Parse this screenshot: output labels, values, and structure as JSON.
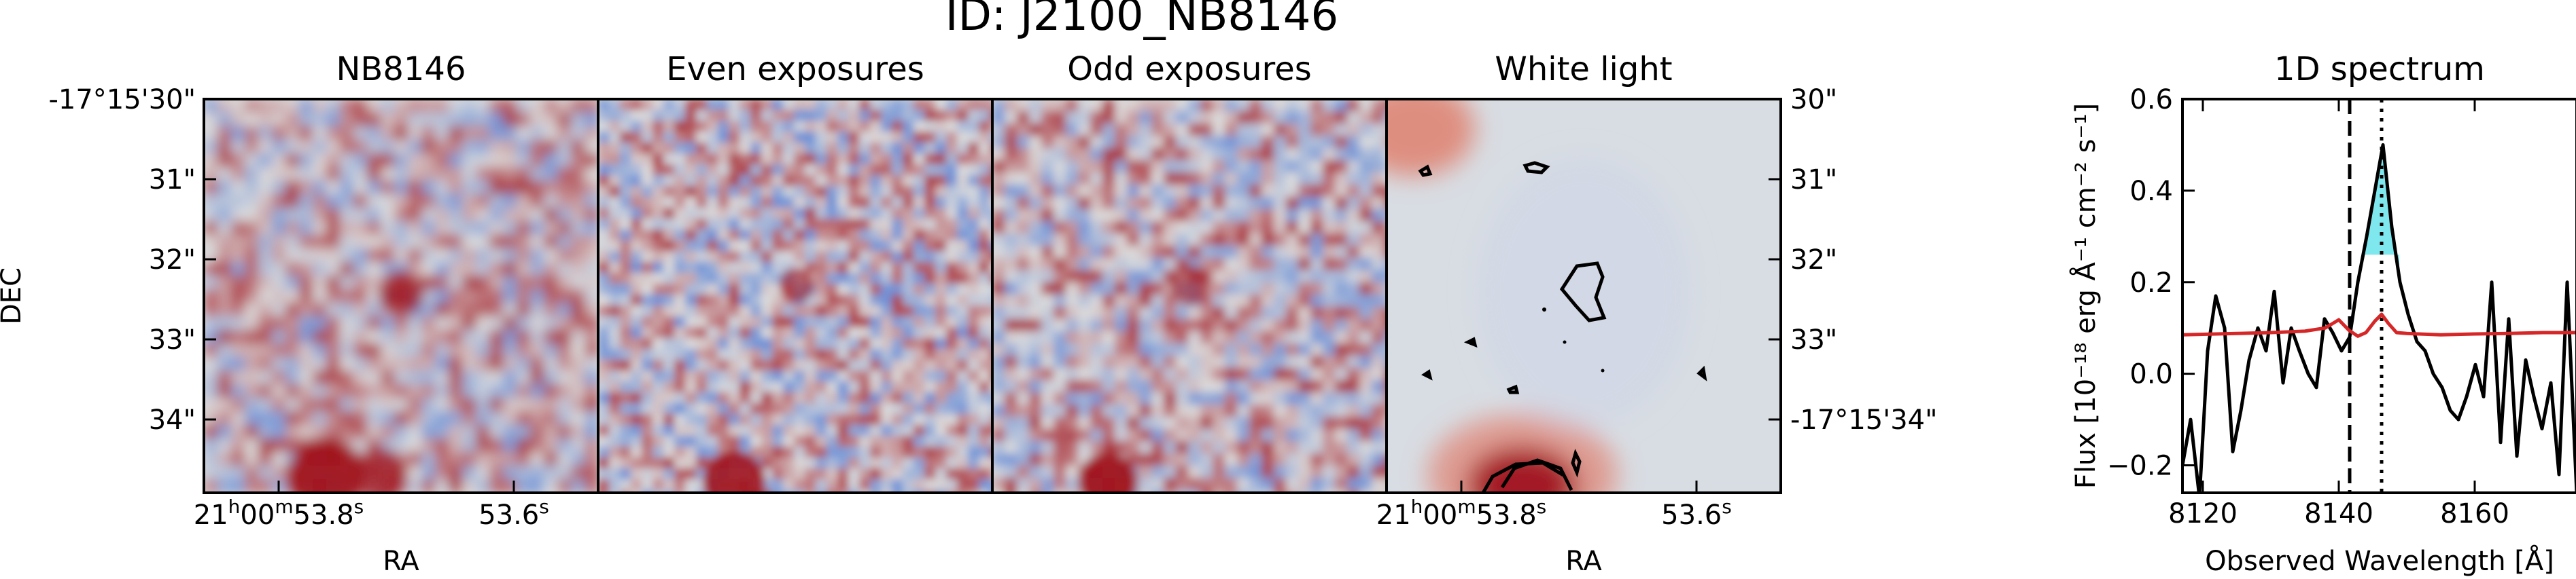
{
  "figure": {
    "title": "ID: J2100_NB8146"
  },
  "panels": [
    {
      "title": "NB8146",
      "colors": {
        "blob": "#a0141e"
      }
    },
    {
      "title": "Even exposures",
      "colors": {
        "blob": "#a0141e"
      }
    },
    {
      "title": "Odd exposures",
      "colors": {
        "blob": "#a0141e"
      }
    },
    {
      "title": "White light",
      "colors": {
        "blob": "#a0141e",
        "contour": "#000000"
      }
    }
  ],
  "image_axes": {
    "dec_label": "DEC",
    "ra_label_left": "RA",
    "ra_label_right": "RA",
    "dec_ticks_left": [
      "-17°15'30\"",
      "31\"",
      "32\"",
      "33\"",
      "34\""
    ],
    "dec_ticks_right": [
      "30\"",
      "31\"",
      "32\"",
      "33\"",
      "-17°15'34\""
    ],
    "ra_ticks_left": [
      {
        "hours": "21",
        "h": "h",
        "minutes": "00",
        "m": "m",
        "seconds": "53.8",
        "s": "s"
      },
      {
        "seconds": "53.6",
        "s": "s"
      }
    ],
    "ra_ticks_right": [
      {
        "hours": "21",
        "h": "h",
        "minutes": "00",
        "m": "m",
        "seconds": "53.8",
        "s": "s"
      },
      {
        "seconds": "53.6",
        "s": "s"
      }
    ],
    "colormap": {
      "low": "#3b6fd4",
      "mid": "#dcdcdc",
      "high": "#a0141e"
    }
  },
  "chart_data": {
    "type": "line",
    "title": "1D spectrum",
    "xlabel": "Observed Wavelength [Å]",
    "ylabel": "Flux [10⁻¹⁸ erg Å⁻¹ cm⁻² s⁻¹]",
    "xlim": [
      8117,
      8175
    ],
    "ylim": [
      -0.26,
      0.6
    ],
    "xticks": [
      8120,
      8140,
      8160
    ],
    "xtick_labels": [
      "8120",
      "8140",
      "8160"
    ],
    "yticks": [
      -0.2,
      0.0,
      0.2,
      0.4,
      0.6
    ],
    "ytick_labels": [
      "−0.2",
      "0.0",
      "0.2",
      "0.4",
      "0.6"
    ],
    "vlines": [
      {
        "x": 8141.6,
        "style": "dashed"
      },
      {
        "x": 8146.3,
        "style": "dotted"
      }
    ],
    "shade": {
      "x0": 8143.6,
      "x1": 8148.9,
      "ylow": 0.26,
      "color": "#7fe8ef"
    },
    "series": [
      {
        "color": "#000000",
        "x": [
          8117,
          8118.2,
          8119.5,
          8120.7,
          8121.9,
          8123.2,
          8124.4,
          8125.6,
          8126.8,
          8128.1,
          8129.3,
          8130.5,
          8131.8,
          8133.0,
          8134.2,
          8135.5,
          8136.7,
          8137.9,
          8139.1,
          8140.4,
          8141.6,
          8142.8,
          8144.1,
          8145.3,
          8146.5,
          8147.8,
          8149.0,
          8150.2,
          8151.5,
          8152.7,
          8153.9,
          8155.2,
          8156.4,
          8157.6,
          8158.8,
          8160.1,
          8161.3,
          8162.5,
          8163.8,
          8165.0,
          8166.2,
          8167.5,
          8168.7,
          8169.9,
          8171.2,
          8172.4,
          8173.6,
          8175
        ],
        "y": [
          -0.2,
          -0.1,
          -0.27,
          0.05,
          0.17,
          0.1,
          -0.17,
          -0.08,
          0.03,
          0.1,
          0.05,
          0.18,
          -0.02,
          0.1,
          0.05,
          0.0,
          -0.03,
          0.12,
          0.09,
          0.05,
          0.08,
          0.2,
          0.3,
          0.4,
          0.5,
          0.32,
          0.2,
          0.13,
          0.07,
          0.05,
          0.0,
          -0.03,
          -0.08,
          -0.1,
          -0.05,
          0.02,
          -0.05,
          0.2,
          -0.15,
          0.12,
          -0.18,
          0.03,
          -0.05,
          -0.12,
          -0.02,
          -0.22,
          0.2,
          -0.26
        ]
      },
      {
        "color": "#d62728",
        "x": [
          8117,
          8125,
          8130,
          8135,
          8138,
          8140,
          8141.5,
          8142.8,
          8144,
          8145.3,
          8146.3,
          8147.3,
          8148.5,
          8150,
          8155,
          8160,
          8165,
          8170,
          8175
        ],
        "y": [
          0.085,
          0.088,
          0.09,
          0.093,
          0.1,
          0.118,
          0.095,
          0.082,
          0.09,
          0.115,
          0.13,
          0.11,
          0.09,
          0.088,
          0.085,
          0.087,
          0.088,
          0.09,
          0.09
        ]
      }
    ]
  }
}
